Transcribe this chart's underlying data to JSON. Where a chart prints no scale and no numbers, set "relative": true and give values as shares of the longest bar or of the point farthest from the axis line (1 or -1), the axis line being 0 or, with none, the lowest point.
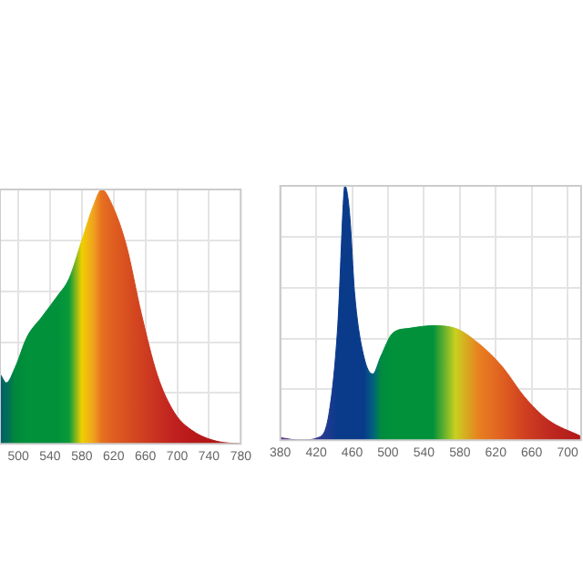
{
  "chart_data": [
    {
      "type": "area",
      "relative": true,
      "grid": true,
      "xlim": [
        477,
        780
      ],
      "xticks": [
        500,
        540,
        580,
        620,
        660,
        700,
        740,
        780
      ],
      "series": [
        {
          "x": [
            478,
            485,
            496,
            511,
            530,
            549,
            564,
            580,
            595,
            605,
            618,
            636,
            655,
            675,
            697,
            720,
            750,
            780
          ],
          "values": [
            0.27,
            0.24,
            0.3,
            0.42,
            0.5,
            0.58,
            0.65,
            0.8,
            0.94,
            1.0,
            0.94,
            0.78,
            0.51,
            0.27,
            0.12,
            0.05,
            0.01,
            0
          ],
          "colors": [
            "#005f6b",
            "#006a5a",
            "#00883c",
            "#00913a",
            "#00913a",
            "#00913a",
            "#0a9a3a",
            "#f0d000",
            "#f0a020",
            "#e67020",
            "#e06020",
            "#d85020",
            "#d04020",
            "#c83020",
            "#c02020",
            "#b81818",
            "#b01515",
            "#a81010"
          ]
        }
      ]
    },
    {
      "type": "area",
      "relative": true,
      "grid": true,
      "xlim": [
        380,
        715
      ],
      "xticks": [
        380,
        420,
        460,
        500,
        540,
        580,
        620,
        660,
        700
      ],
      "series": [
        {
          "x": [
            380,
            402,
            422,
            434,
            444,
            451,
            452,
            457,
            463,
            473,
            483,
            492,
            505,
            524,
            550,
            575,
            601,
            627,
            652,
            678,
            715
          ],
          "values": [
            0.01,
            0,
            0.01,
            0.1,
            0.45,
            0.98,
            1.0,
            0.9,
            0.57,
            0.33,
            0.26,
            0.33,
            0.42,
            0.44,
            0.45,
            0.44,
            0.38,
            0.29,
            0.17,
            0.08,
            0.015
          ],
          "colors": [
            "#5a3a8a",
            "#4a3a8a",
            "#303a90",
            "#1a3a90",
            "#0a3a8a",
            "#0a3a8a",
            "#0a3a8a",
            "#0a3a8a",
            "#0a3a8a",
            "#0a3a8a",
            "#006080",
            "#008a40",
            "#00913a",
            "#00913a",
            "#00913a",
            "#c8d020",
            "#e88020",
            "#e06020",
            "#d04020",
            "#c02a20",
            "#b01818"
          ]
        }
      ]
    }
  ]
}
